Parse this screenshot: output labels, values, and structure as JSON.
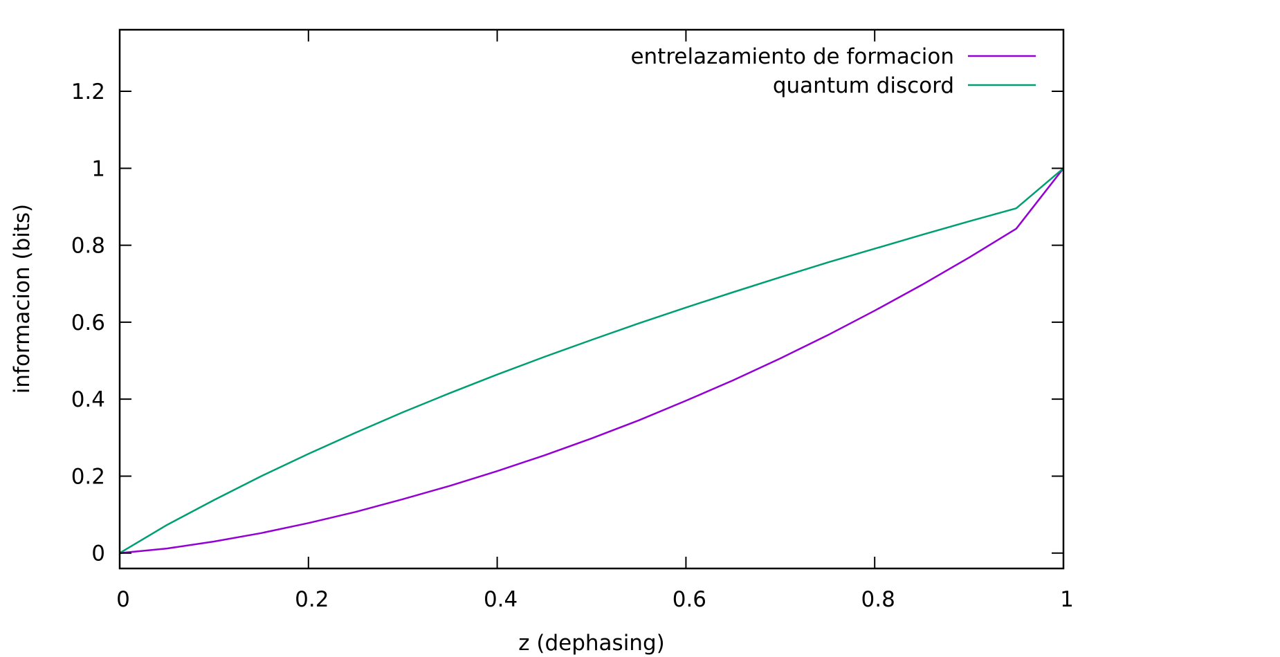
{
  "chart_data": {
    "type": "line",
    "title": "",
    "xlabel": "z (dephasing)",
    "ylabel": "informacion (bits)",
    "xlim": [
      0,
      1
    ],
    "ylim": [
      -0.04,
      1.36
    ],
    "xticks": [
      0,
      0.2,
      0.4,
      0.6,
      0.8,
      1
    ],
    "xtick_labels": [
      "0",
      "0.2",
      "0.4",
      "0.6",
      "0.8",
      "1"
    ],
    "yticks": [
      0,
      0.2,
      0.4,
      0.6,
      0.8,
      1,
      1.2
    ],
    "ytick_labels": [
      "0",
      "0.2",
      "0.4",
      "0.6",
      "0.8",
      "1",
      "1.2"
    ],
    "grid": false,
    "legend_position": "top-right",
    "x": [
      0,
      0.05,
      0.1,
      0.15,
      0.2,
      0.25,
      0.3,
      0.35,
      0.4,
      0.45,
      0.5,
      0.55,
      0.6,
      0.65,
      0.7,
      0.75,
      0.8,
      0.85,
      0.9,
      0.95,
      1
    ],
    "series": [
      {
        "name": "entrelazamiento de formacion",
        "color": "#9400d3",
        "values": [
          0,
          0.012,
          0.03,
          0.052,
          0.078,
          0.107,
          0.14,
          0.175,
          0.213,
          0.254,
          0.298,
          0.345,
          0.396,
          0.449,
          0.506,
          0.566,
          0.63,
          0.697,
          0.768,
          0.843,
          1.0
        ]
      },
      {
        "name": "quantum discord",
        "color": "#009e73",
        "values": [
          0,
          0.073,
          0.138,
          0.2,
          0.258,
          0.313,
          0.366,
          0.416,
          0.464,
          0.51,
          0.554,
          0.597,
          0.638,
          0.678,
          0.717,
          0.755,
          0.791,
          0.827,
          0.862,
          0.896,
          1.0
        ]
      }
    ]
  }
}
